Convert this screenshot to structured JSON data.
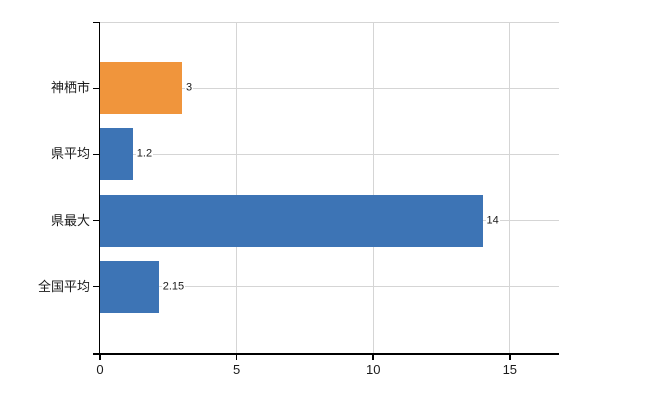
{
  "chart_data": {
    "type": "bar",
    "orientation": "horizontal",
    "title": "",
    "xlabel": "",
    "ylabel": "",
    "categories": [
      "神栖市",
      "県平均",
      "県最大",
      "全国平均"
    ],
    "values": [
      3,
      1.2,
      14,
      2.15
    ],
    "value_labels": [
      "3",
      "1.2",
      "14",
      "2.15"
    ],
    "bar_colors": [
      "#f0953c",
      "#3d74b5",
      "#3d74b5",
      "#3d74b5"
    ],
    "x_ticks": [
      0,
      5,
      10,
      15
    ],
    "x_tick_labels": [
      "0",
      "5",
      "10",
      "15"
    ],
    "xlim": [
      0,
      16.8
    ],
    "grid": "vertical-gridlines-and-top-border",
    "legend": "none"
  },
  "colors": {
    "highlight_bar": "#f0953c",
    "default_bar": "#3d74b5",
    "gridline": "#d5d5d5",
    "guide_line": "#d5d5d5",
    "axis": "#000000",
    "text": "#1a1a1a",
    "background": "#ffffff"
  }
}
